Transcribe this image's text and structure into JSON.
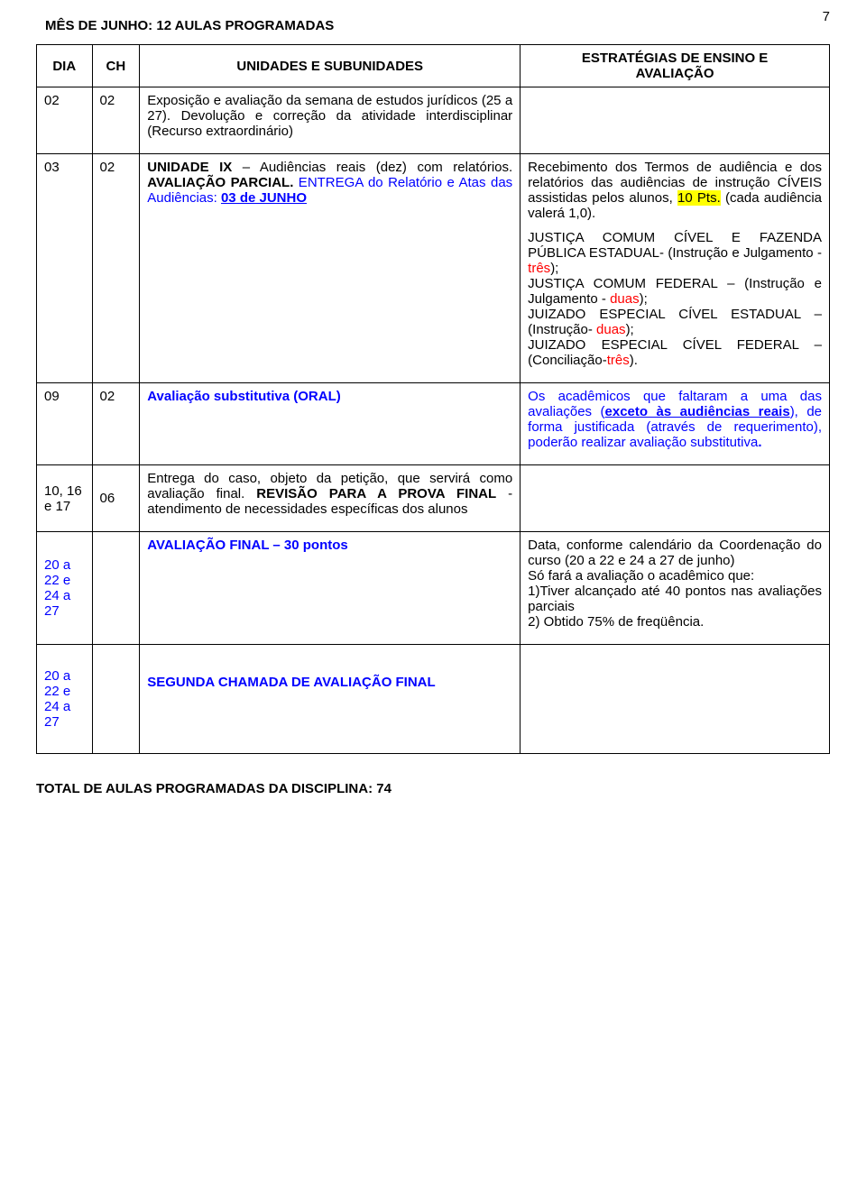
{
  "page_number": "7",
  "title": "MÊS DE JUNHO: 12 AULAS PROGRAMADAS",
  "header": {
    "dia": "DIA",
    "ch": "CH",
    "units": "UNIDADES E SUBUNIDADES",
    "strat_line1": "ESTRATÉGIAS DE ENSINO E",
    "strat_line2": "AVALIAÇÃO"
  },
  "rows": {
    "r0": {
      "dia": "02",
      "ch": "02",
      "u1": "Exposição e avaliação da semana de estudos jurídicos (25 a 27). Devolução e correção da atividade interdisciplinar (Recurso extraordinário)"
    },
    "r1": {
      "dia": "03",
      "ch": "02",
      "u_pre": "UNIDADE IX",
      "u_mid1": " – Audiências reais (dez) com relatórios. ",
      "u_bold2": "AVALIAÇÃO PARCIAL.",
      "u_blue": " ENTREGA do Relatório e Atas das Audiências: ",
      "u_blue_uline": "03 de JUNHO",
      "s1a": "Recebimento dos Termos de audiência e dos relatórios das audiências de instrução CÍVEIS assistidas pelos alunos, ",
      "s1b_mark": "10 Pts.",
      "s1c": " (cada audiência valerá 1,0).",
      "s2a": "JUSTIÇA COMUM CÍVEL E FAZENDA PÚBLICA ESTADUAL- (Instrução e Julgamento - ",
      "s2b_red": "três",
      "s2c": ");",
      "s3a": "JUSTIÇA COMUM FEDERAL – (Instrução e Julgamento - ",
      "s3b_red": "duas",
      "s3c": ");",
      "s4a": "JUIZADO ESPECIAL CÍVEL ESTADUAL – (Instrução- ",
      "s4b_red": "duas",
      "s4c": ");",
      "s5a": "JUIZADO ESPECIAL CÍVEL FEDERAL – (Conciliação-",
      "s5b_red": "três",
      "s5c": ")."
    },
    "r2": {
      "dia": "09",
      "ch": "02",
      "u_blue_bold": "Avaliação substitutiva (ORAL)",
      "s1a": "Os acadêmicos que faltaram a uma das avaliações (",
      "s1b_uline_bold": "exceto às audiências reais",
      "s1c": "), de forma justificada (através de requerimento), poderão realizar avaliação substitutiva",
      "s1d_bold": "."
    },
    "r3": {
      "dia": "10, 16 e 17",
      "ch": "06",
      "u_a": "Entrega do caso, objeto da petição, que servirá como avaliação final. ",
      "u_b_bold": "REVISÃO PARA A PROVA FINAL",
      "u_c": " - atendimento de necessidades específicas dos alunos"
    },
    "r4": {
      "dia": "20 a 22 e 24 a 27",
      "u_blue_bold": "AVALIAÇÃO FINAL – 30 pontos",
      "s1": "Data, conforme calendário da Coordenação do curso (20 a 22 e 24 a 27 de junho)",
      "s2": "Só fará a avaliação o acadêmico que:",
      "s3": "1)Tiver alcançado até 40 pontos nas avaliações parciais",
      "s4": "2) Obtido 75% de freqüência."
    },
    "r5": {
      "dia": "20 a 22 e 24 a 27",
      "u_blue_bold": "SEGUNDA CHAMADA DE AVALIAÇÃO FINAL"
    }
  },
  "footer": "TOTAL DE AULAS PROGRAMADAS DA DISCIPLINA: 74"
}
